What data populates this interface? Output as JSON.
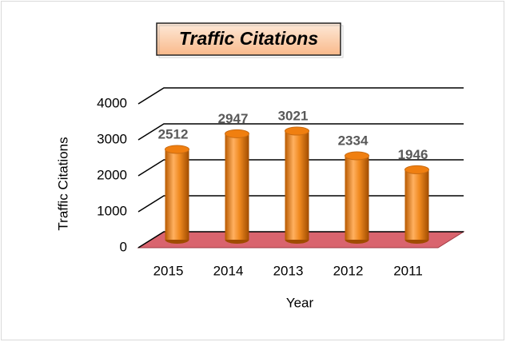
{
  "chart_data": {
    "type": "bar",
    "title": "Traffic Citations",
    "x_label": "Year",
    "y_label": "Traffic Citations",
    "categories": [
      "2015",
      "2014",
      "2013",
      "2012",
      "2011"
    ],
    "values": [
      2512,
      2947,
      3021,
      2334,
      1946
    ],
    "color": "#f07f10",
    "ylim": [
      0,
      4000
    ],
    "yticks": [
      0,
      1000,
      2000,
      3000,
      4000
    ],
    "grid": true
  }
}
